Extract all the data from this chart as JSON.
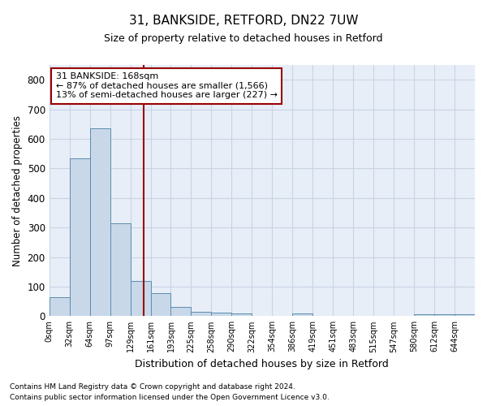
{
  "title_line1": "31, BANKSIDE, RETFORD, DN22 7UW",
  "title_line2": "Size of property relative to detached houses in Retford",
  "xlabel": "Distribution of detached houses by size in Retford",
  "ylabel": "Number of detached properties",
  "footer_line1": "Contains HM Land Registry data © Crown copyright and database right 2024.",
  "footer_line2": "Contains public sector information licensed under the Open Government Licence v3.0.",
  "bin_labels": [
    "0sqm",
    "32sqm",
    "64sqm",
    "97sqm",
    "129sqm",
    "161sqm",
    "193sqm",
    "225sqm",
    "258sqm",
    "290sqm",
    "322sqm",
    "354sqm",
    "386sqm",
    "419sqm",
    "451sqm",
    "483sqm",
    "515sqm",
    "547sqm",
    "580sqm",
    "612sqm",
    "644sqm"
  ],
  "bar_values": [
    65,
    535,
    635,
    315,
    120,
    78,
    30,
    14,
    11,
    10,
    0,
    0,
    9,
    0,
    0,
    0,
    0,
    0,
    5,
    5,
    5
  ],
  "bar_color": "#c8d8e8",
  "bar_edge_color": "#5b8db0",
  "vline_color": "#990000",
  "annotation_text": "31 BANKSIDE: 168sqm\n← 87% of detached houses are smaller (1,566)\n13% of semi-detached houses are larger (227) →",
  "annotation_box_color": "white",
  "annotation_box_edge_color": "#990000",
  "ylim": [
    0,
    850
  ],
  "yticks": [
    0,
    100,
    200,
    300,
    400,
    500,
    600,
    700,
    800
  ],
  "grid_color": "#c8d4e4",
  "background_color": "#e8eef8",
  "vline_position": 4.67
}
